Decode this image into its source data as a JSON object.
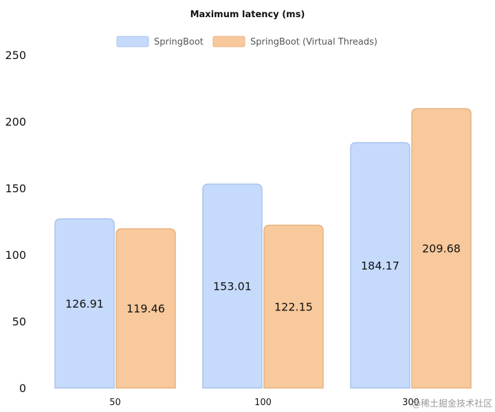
{
  "chart_data": {
    "type": "bar",
    "title": "Maximum latency (ms)",
    "xlabel": "",
    "ylabel": "",
    "categories": [
      "50",
      "100",
      "300"
    ],
    "series": [
      {
        "name": "SpringBoot",
        "values": [
          126.91,
          153.01,
          184.17
        ],
        "fill": "#c6dafc",
        "stroke": "#a9c1ec"
      },
      {
        "name": "SpringBoot (Virtual Threads)",
        "values": [
          119.46,
          122.15,
          209.68
        ],
        "fill": "#f7c99c",
        "stroke": "#e8b07d"
      }
    ],
    "ylim": [
      0,
      250
    ],
    "yticks": [
      0,
      50,
      100,
      150,
      200,
      250
    ],
    "data_labels": true,
    "legend_position": "top-center",
    "grid": false
  },
  "watermark": {
    "text": "@稀土掘金技术社区"
  }
}
